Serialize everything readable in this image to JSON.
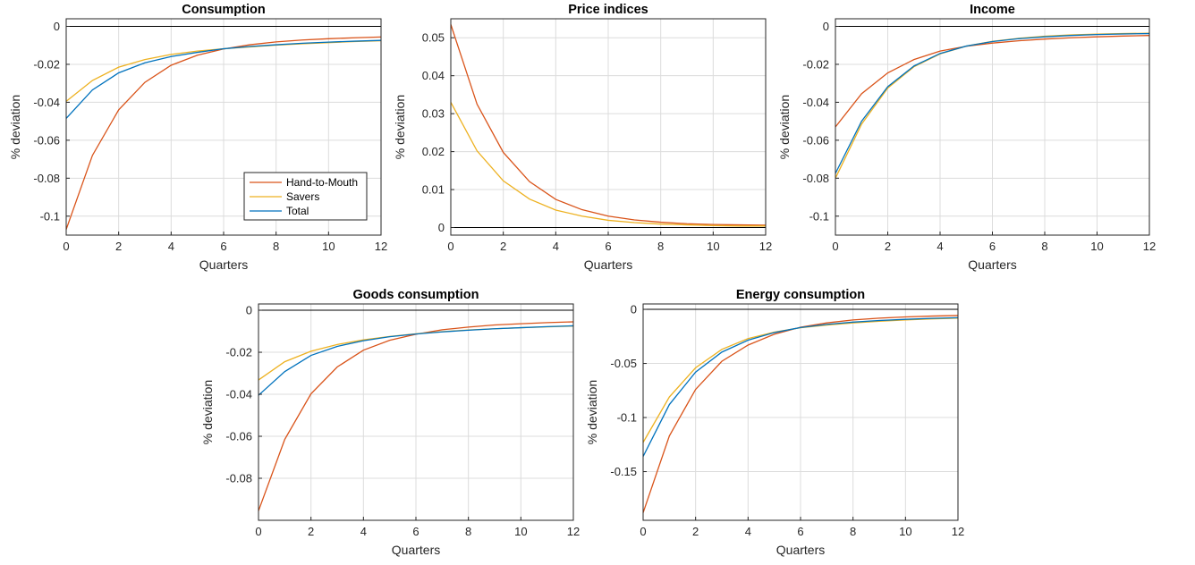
{
  "colors": {
    "Hand-to-Mouth": "#D95319",
    "Savers": "#EDB120",
    "Total": "#0072BD",
    "grid": "#dcdcdc",
    "zero_line": "#000000"
  },
  "legend": {
    "items": [
      "Hand-to-Mouth",
      "Savers",
      "Total"
    ],
    "placement": "lower-right of Consumption panel"
  },
  "chart_data": [
    {
      "type": "line",
      "title": "Consumption",
      "xlabel": "Quarters",
      "ylabel": "% deviation",
      "xlim": [
        0,
        12
      ],
      "ylim": [
        -0.11,
        0.004
      ],
      "xticks": [
        "0",
        "2",
        "4",
        "6",
        "8",
        "10",
        "12"
      ],
      "yticks": [
        "0",
        "-0.02",
        "-0.04",
        "-0.06",
        "-0.08",
        "-0.1"
      ],
      "yticks_values": [
        0,
        -0.02,
        -0.04,
        -0.06,
        -0.08,
        -0.1
      ],
      "grid": true,
      "x": [
        0,
        1,
        2,
        3,
        4,
        5,
        6,
        7,
        8,
        9,
        10,
        11,
        12
      ],
      "series": [
        {
          "name": "Hand-to-Mouth",
          "values": [
            -0.107,
            -0.068,
            -0.044,
            -0.0295,
            -0.0205,
            -0.0152,
            -0.0119,
            -0.0097,
            -0.0082,
            -0.0072,
            -0.0065,
            -0.006,
            -0.0056
          ]
        },
        {
          "name": "Savers",
          "values": [
            -0.0395,
            -0.0285,
            -0.0215,
            -0.0175,
            -0.0148,
            -0.013,
            -0.0118,
            -0.0108,
            -0.0099,
            -0.0092,
            -0.0086,
            -0.008,
            -0.0076
          ]
        },
        {
          "name": "Total",
          "values": [
            -0.0485,
            -0.0335,
            -0.0245,
            -0.0192,
            -0.0159,
            -0.0137,
            -0.0118,
            -0.0106,
            -0.0097,
            -0.0089,
            -0.0083,
            -0.0078,
            -0.0074
          ]
        }
      ]
    },
    {
      "type": "line",
      "title": "Price indices",
      "xlabel": "Quarters",
      "ylabel": "% deviation",
      "xlim": [
        0,
        12
      ],
      "ylim": [
        -0.002,
        0.055
      ],
      "xticks": [
        "0",
        "2",
        "4",
        "6",
        "8",
        "10",
        "12"
      ],
      "yticks": [
        "0",
        "0.01",
        "0.02",
        "0.03",
        "0.04",
        "0.05"
      ],
      "yticks_values": [
        0,
        0.01,
        0.02,
        0.03,
        0.04,
        0.05
      ],
      "grid": true,
      "x": [
        0,
        1,
        2,
        3,
        4,
        5,
        6,
        7,
        8,
        9,
        10,
        11,
        12
      ],
      "series": [
        {
          "name": "Hand-to-Mouth",
          "values": [
            0.0535,
            0.0325,
            0.0198,
            0.0121,
            0.0074,
            0.0047,
            0.003,
            0.002,
            0.0014,
            0.001,
            0.0008,
            0.0007,
            0.0006
          ]
        },
        {
          "name": "Savers",
          "values": [
            0.033,
            0.0202,
            0.0123,
            0.0075,
            0.0046,
            0.003,
            0.0019,
            0.0013,
            0.0009,
            0.0007,
            0.0005,
            0.0004,
            0.0004
          ]
        }
      ]
    },
    {
      "type": "line",
      "title": "Income",
      "xlabel": "Quarters",
      "ylabel": "% deviation",
      "xlim": [
        0,
        12
      ],
      "ylim": [
        -0.11,
        0.004
      ],
      "xticks": [
        "0",
        "2",
        "4",
        "6",
        "8",
        "10",
        "12"
      ],
      "yticks": [
        "0",
        "-0.02",
        "-0.04",
        "-0.06",
        "-0.08",
        "-0.1"
      ],
      "yticks_values": [
        0,
        -0.02,
        -0.04,
        -0.06,
        -0.08,
        -0.1
      ],
      "grid": true,
      "x": [
        0,
        1,
        2,
        3,
        4,
        5,
        6,
        7,
        8,
        9,
        10,
        11,
        12
      ],
      "series": [
        {
          "name": "Hand-to-Mouth",
          "values": [
            -0.053,
            -0.0355,
            -0.0245,
            -0.0175,
            -0.013,
            -0.0105,
            -0.0088,
            -0.0076,
            -0.0067,
            -0.006,
            -0.0055,
            -0.0051,
            -0.0048
          ]
        },
        {
          "name": "Savers",
          "values": [
            -0.08,
            -0.0515,
            -0.0325,
            -0.0213,
            -0.0145,
            -0.0104,
            -0.0079,
            -0.0063,
            -0.0052,
            -0.0045,
            -0.0041,
            -0.0038,
            -0.0036
          ]
        },
        {
          "name": "Total",
          "values": [
            -0.0775,
            -0.05,
            -0.0318,
            -0.0209,
            -0.0143,
            -0.0104,
            -0.008,
            -0.0065,
            -0.0055,
            -0.0048,
            -0.0043,
            -0.004,
            -0.0038
          ]
        }
      ]
    },
    {
      "type": "line",
      "title": "Goods consumption",
      "xlabel": "Quarters",
      "ylabel": "% deviation",
      "xlim": [
        0,
        12
      ],
      "ylim": [
        -0.1,
        0.003
      ],
      "xticks": [
        "0",
        "2",
        "4",
        "6",
        "8",
        "10",
        "12"
      ],
      "yticks": [
        "0",
        "-0.02",
        "-0.04",
        "-0.06",
        "-0.08"
      ],
      "yticks_values": [
        0,
        -0.02,
        -0.04,
        -0.06,
        -0.08
      ],
      "grid": true,
      "x": [
        0,
        1,
        2,
        3,
        4,
        5,
        6,
        7,
        8,
        9,
        10,
        11,
        12
      ],
      "series": [
        {
          "name": "Hand-to-Mouth",
          "values": [
            -0.0955,
            -0.0615,
            -0.0398,
            -0.027,
            -0.019,
            -0.0143,
            -0.0114,
            -0.0093,
            -0.008,
            -0.007,
            -0.0064,
            -0.0059,
            -0.0055
          ]
        },
        {
          "name": "Savers",
          "values": [
            -0.0332,
            -0.0245,
            -0.0195,
            -0.0163,
            -0.0141,
            -0.0125,
            -0.0112,
            -0.0102,
            -0.0094,
            -0.0088,
            -0.0083,
            -0.0079,
            -0.0075
          ]
        },
        {
          "name": "Total",
          "values": [
            -0.0405,
            -0.0292,
            -0.0215,
            -0.0172,
            -0.0145,
            -0.0126,
            -0.0113,
            -0.0103,
            -0.0095,
            -0.0088,
            -0.0083,
            -0.0078,
            -0.0074
          ]
        }
      ]
    },
    {
      "type": "line",
      "title": "Energy consumption",
      "xlabel": "Quarters",
      "ylabel": "% deviation",
      "xlim": [
        0,
        12
      ],
      "ylim": [
        -0.195,
        0.005
      ],
      "xticks": [
        "0",
        "2",
        "4",
        "6",
        "8",
        "10",
        "12"
      ],
      "yticks": [
        "0",
        "-0.05",
        "-0.1",
        "-0.15"
      ],
      "yticks_values": [
        0,
        -0.05,
        -0.1,
        -0.15
      ],
      "grid": true,
      "x": [
        0,
        1,
        2,
        3,
        4,
        5,
        6,
        7,
        8,
        9,
        10,
        11,
        12
      ],
      "series": [
        {
          "name": "Hand-to-Mouth",
          "values": [
            -0.188,
            -0.117,
            -0.074,
            -0.048,
            -0.033,
            -0.023,
            -0.0165,
            -0.0125,
            -0.0098,
            -0.0081,
            -0.007,
            -0.0062,
            -0.0057
          ]
        },
        {
          "name": "Savers",
          "values": [
            -0.123,
            -0.081,
            -0.054,
            -0.037,
            -0.027,
            -0.021,
            -0.017,
            -0.0145,
            -0.0125,
            -0.011,
            -0.0098,
            -0.0088,
            -0.0081
          ]
        },
        {
          "name": "Total",
          "values": [
            -0.136,
            -0.088,
            -0.058,
            -0.0395,
            -0.0285,
            -0.0215,
            -0.0168,
            -0.0139,
            -0.0118,
            -0.0103,
            -0.0092,
            -0.0083,
            -0.0077
          ]
        }
      ]
    }
  ]
}
